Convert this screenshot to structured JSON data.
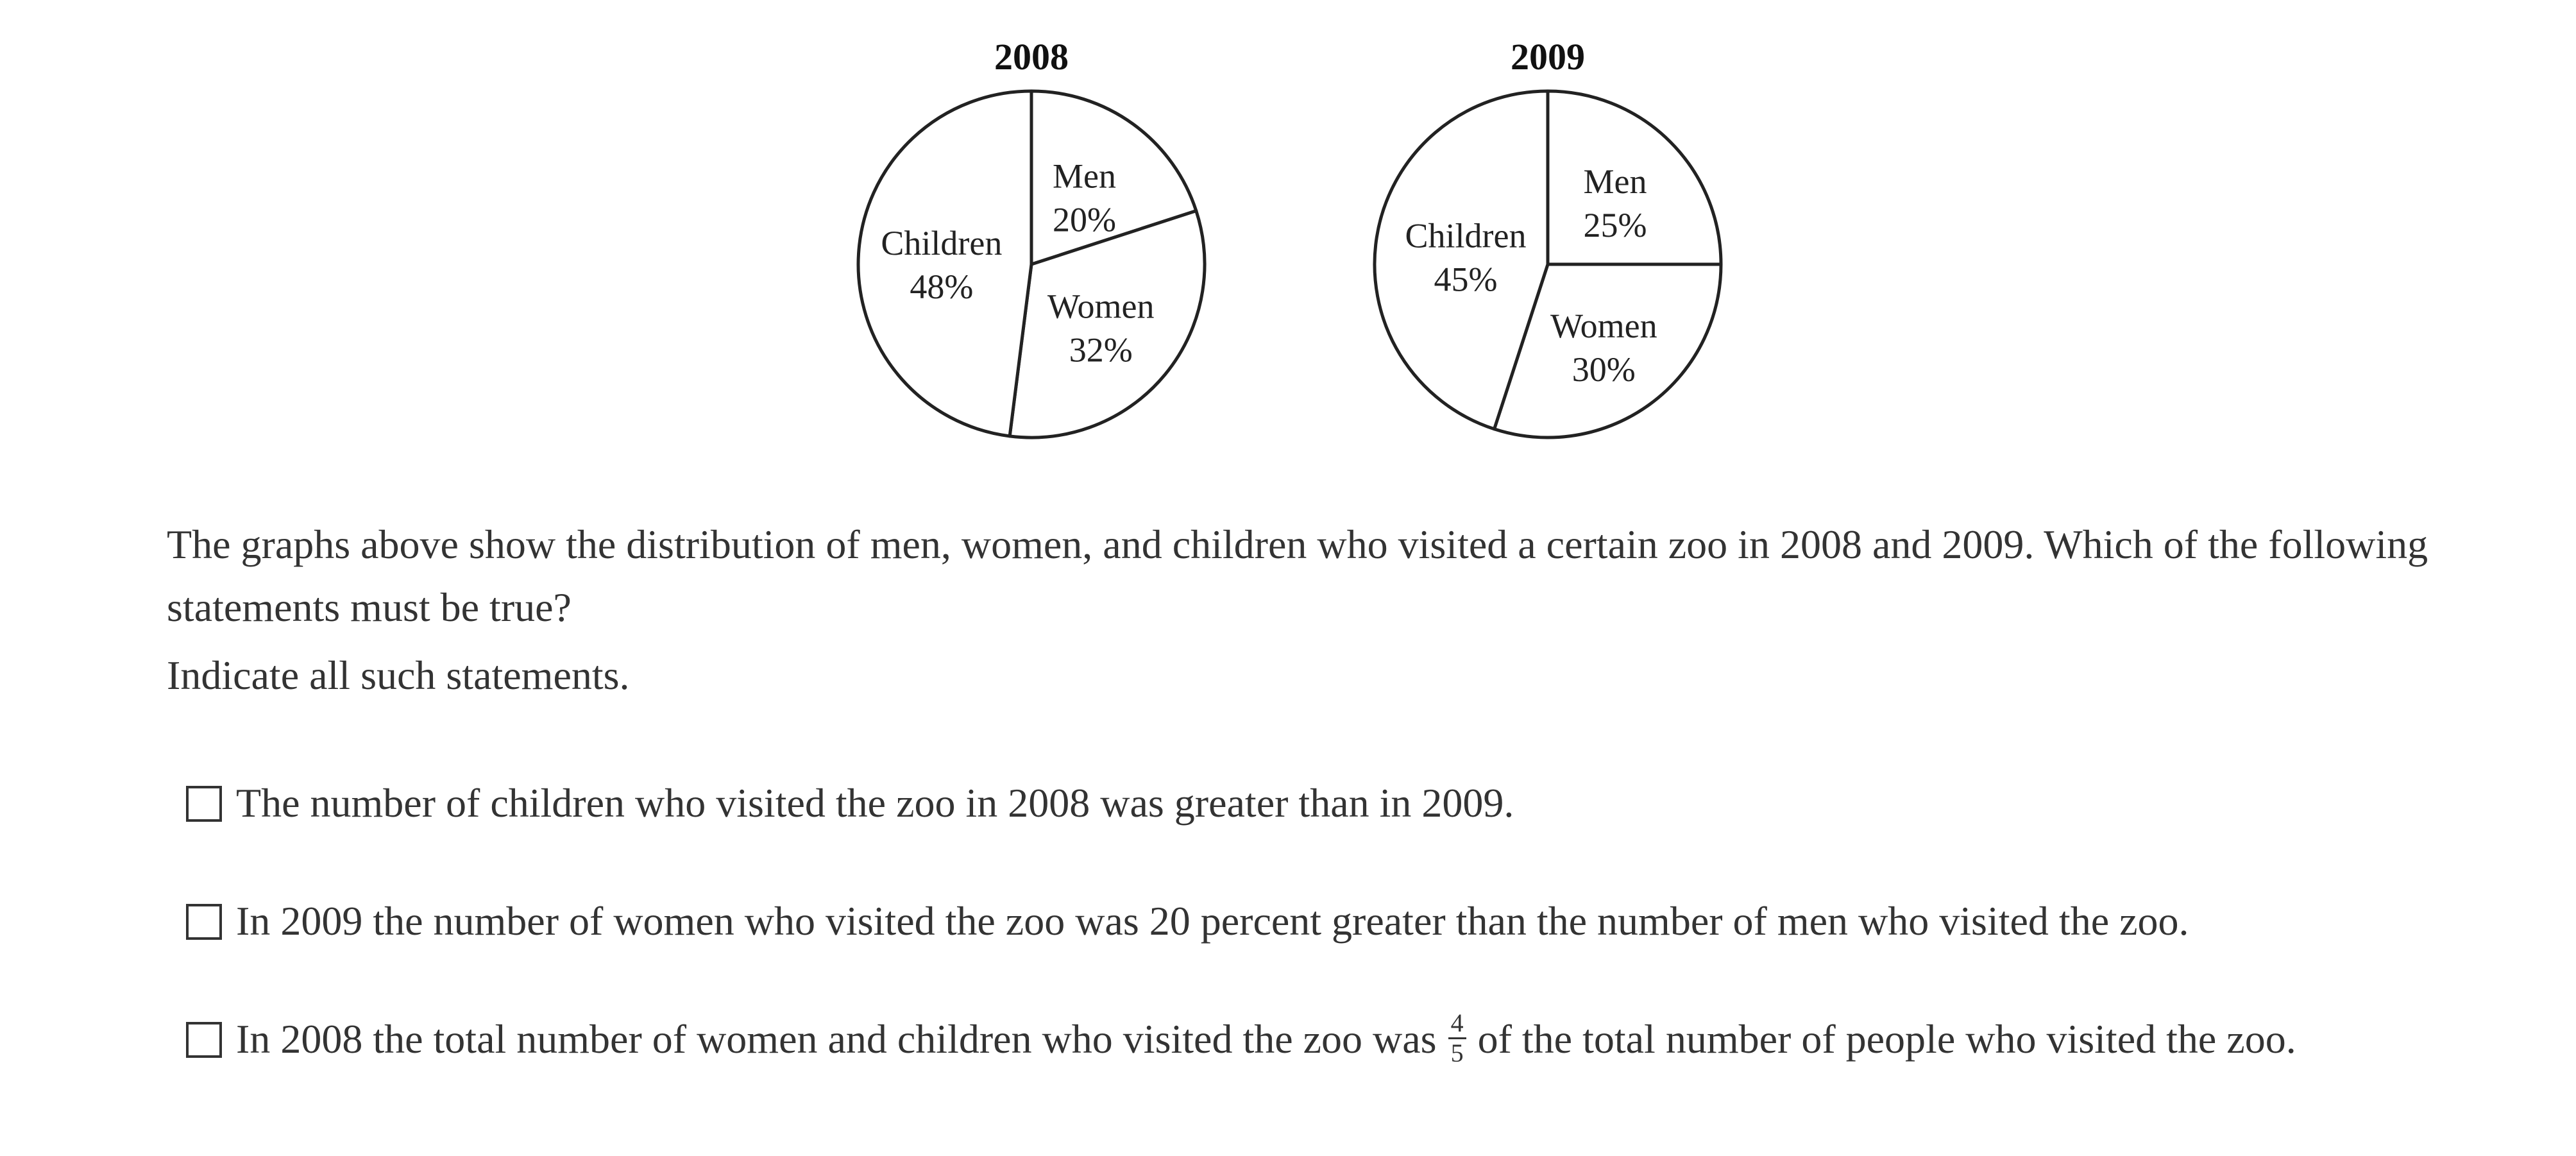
{
  "chart_data": [
    {
      "type": "pie",
      "title": "2008",
      "slices": [
        {
          "label": "Men",
          "value": 20,
          "value_label": "20%"
        },
        {
          "label": "Women",
          "value": 32,
          "value_label": "32%"
        },
        {
          "label": "Children",
          "value": 48,
          "value_label": "48%"
        }
      ]
    },
    {
      "type": "pie",
      "title": "2009",
      "slices": [
        {
          "label": "Men",
          "value": 25,
          "value_label": "25%"
        },
        {
          "label": "Women",
          "value": 30,
          "value_label": "30%"
        },
        {
          "label": "Children",
          "value": 45,
          "value_label": "45%"
        }
      ]
    }
  ],
  "question": {
    "stem": "The graphs above show the distribution of men, women, and children who visited a certain zoo in 2008 and 2009. Which of the following statements must be true?",
    "instruction": "Indicate all such statements."
  },
  "options": [
    {
      "text": "The number of children who visited the zoo in 2008 was greater than in 2009."
    },
    {
      "text": "In 2009 the number of women who visited the zoo was 20 percent greater than the number of men who visited the zoo."
    },
    {
      "text_before": "In 2008 the total number of women and children who visited the zoo was",
      "fraction_numerator": "4",
      "fraction_denominator": "5",
      "text_after": "of the total number of people who visited the zoo."
    }
  ]
}
